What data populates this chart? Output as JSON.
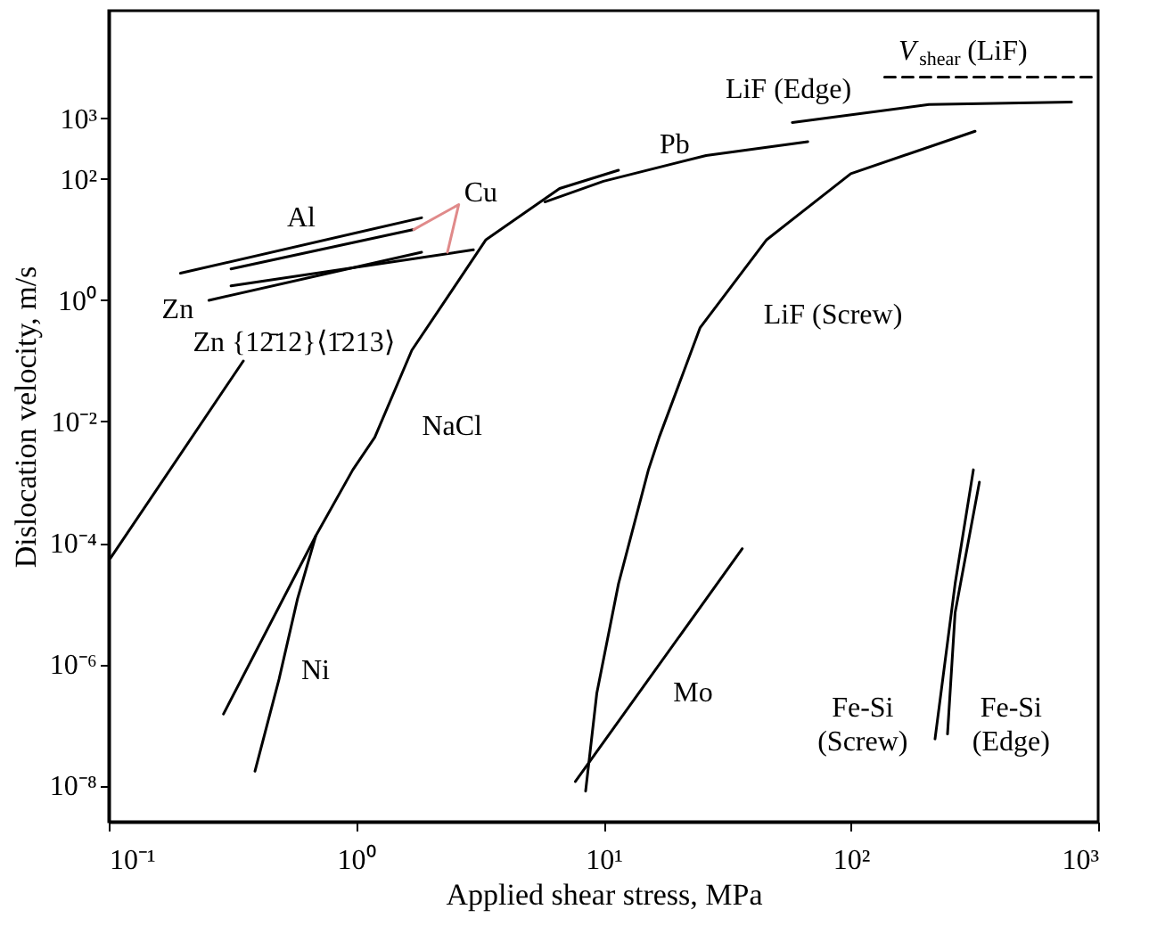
{
  "chart_data": {
    "type": "line",
    "xlabel": "Applied shear stress, MPa",
    "ylabel": "Dislocation velocity, m/s",
    "log": "xy",
    "grid": false,
    "line_style": "solid",
    "marker": "none",
    "xlim": [
      0.1,
      1000
    ],
    "ylim": [
      2.5e-09,
      60000
    ],
    "xticks": [
      {
        "value": 0.1,
        "label": "10⁻¹"
      },
      {
        "value": 1,
        "label": "10⁰"
      },
      {
        "value": 10,
        "label": "10¹"
      },
      {
        "value": 100,
        "label": "10²"
      },
      {
        "value": 1000,
        "label": "10³"
      }
    ],
    "yticks": [
      {
        "value": 1e-08,
        "label": "10⁻⁸"
      },
      {
        "value": 1e-06,
        "label": "10⁻⁶"
      },
      {
        "value": 0.0001,
        "label": "10⁻⁴"
      },
      {
        "value": 0.01,
        "label": "10⁻²"
      },
      {
        "value": 1,
        "label": "10⁰"
      },
      {
        "value": 100,
        "label": "10²"
      },
      {
        "value": 1000,
        "label": "10³"
      }
    ],
    "series": [
      {
        "color": "#000000",
        "x": [
          0.195,
          1.84
        ],
        "values": [
          2.8,
          23
        ]
      },
      {
        "color": "#000000",
        "x": [
          0.312,
          1.71
        ],
        "values": [
          3.3,
          14.7
        ]
      },
      {
        "color": "#000000",
        "x": [
          0.312,
          2.98
        ],
        "values": [
          1.73,
          6.8
        ]
      },
      {
        "color": "#000000",
        "x": [
          0.254,
          1.84
        ],
        "values": [
          1.0,
          6.2
        ]
      },
      {
        "color": "#e08a8a",
        "x": [
          1.71,
          2.6,
          2.34
        ],
        "values": [
          14.7,
          38,
          6.2
        ]
      },
      {
        "color": "#000000",
        "x": [
          0.1017,
          0.35
        ],
        "values": [
          5.6e-05,
          0.1
        ]
      },
      {
        "color": "#000000",
        "x": [
          0.291,
          0.687,
          0.97,
          1.19,
          1.68,
          3.35,
          6.65,
          11.5
        ],
        "values": [
          1.5e-07,
          0.00013,
          0.0016,
          0.0055,
          0.15,
          10,
          70,
          140
        ]
      },
      {
        "color": "#000000",
        "x": [
          0.39,
          0.488,
          0.58,
          0.687
        ],
        "values": [
          1.7e-08,
          5.6e-07,
          1.2e-05,
          0.00013
        ]
      },
      {
        "color": "#000000",
        "x": [
          5.8,
          10,
          26,
          67
        ],
        "values": [
          42,
          92,
          245,
          415
        ]
      },
      {
        "color": "#000000",
        "x": [
          58,
          207,
          780
        ],
        "values": [
          860,
          1700,
          1860
        ]
      },
      {
        "color": "#000000",
        "line_style": "dashed",
        "x": [
          137,
          1000
        ],
        "values": [
          4800,
          4800
        ]
      },
      {
        "color": "#000000",
        "x": [
          8.47,
          9.4,
          11.5,
          15.2,
          16.8,
          24.6,
          45.7,
          100,
          318
        ],
        "values": [
          8e-09,
          3.3e-07,
          2.1e-05,
          0.0016,
          0.0055,
          0.355,
          10,
          123,
          615
        ]
      },
      {
        "color": "#000000",
        "x": [
          7.7,
          36.4
        ],
        "values": [
          1.15e-08,
          8e-05
        ]
      },
      {
        "color": "#000000",
        "x": [
          219,
          264,
          313
        ],
        "values": [
          5.8e-08,
          2.1e-05,
          0.0016
        ]
      },
      {
        "color": "#000000",
        "x": [
          246,
          264,
          331
        ],
        "values": [
          7e-08,
          7e-06,
          0.001
        ]
      }
    ],
    "annotations": [
      "Al",
      "Cu",
      "Zn",
      "Zn {12̄12}⟨1̄213⟩",
      "NaCl",
      "Pb",
      "LiF (Edge)",
      "V$_{shear}$ (LiF)",
      "LiF (Screw)",
      "Ni",
      "Mo",
      "Fe-Si\n(Screw)",
      "Fe-Si\n(Edge)"
    ]
  }
}
